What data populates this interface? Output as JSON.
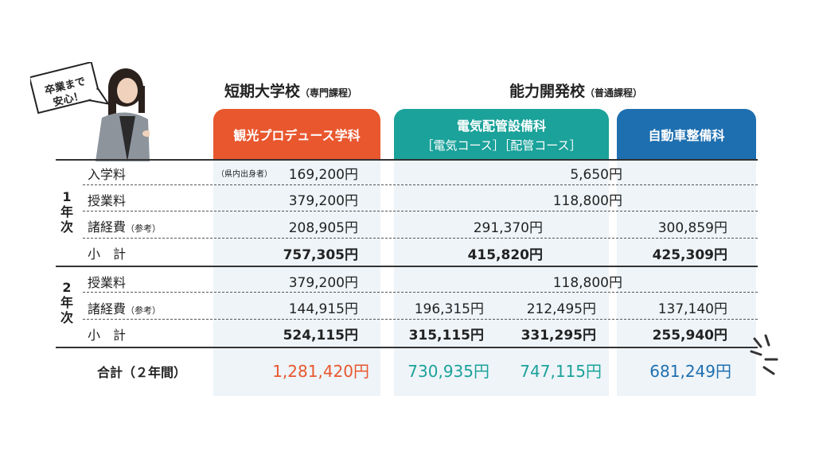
{
  "badge": "卒業まで\n安心！",
  "groups": {
    "tanki": {
      "title": "短期大学校",
      "sub": "（専門課程）"
    },
    "noryoku": {
      "title": "能力開発校",
      "sub": "（普通課程）"
    }
  },
  "columns": {
    "kanko": {
      "name": "観光プロデュース学科",
      "color": "#e8572e"
    },
    "denki": {
      "name": "電気配管設備科",
      "sub": "［電気コース］［配管コース］",
      "color": "#1ba29a"
    },
    "jidosha": {
      "name": "自動車整備科",
      "color": "#1e6fb0"
    }
  },
  "years": {
    "y1": "1\n年\n次",
    "y2": "2\n年\n次"
  },
  "rows": {
    "r1": {
      "label": "入学料",
      "note": "（県内出身者）",
      "kanko": "169,200円",
      "noryoku": "5,650円"
    },
    "r2": {
      "label": "授業料",
      "kanko": "379,200円",
      "noryoku": "118,800円"
    },
    "r3": {
      "label": "諸経費",
      "label_note": "（参考）",
      "kanko": "208,905円",
      "denki": "291,370円",
      "jidosha": "300,859円"
    },
    "r4": {
      "label": "小　計",
      "kanko": "757,305円",
      "denki": "415,820円",
      "jidosha": "425,309円"
    },
    "r5": {
      "label": "授業料",
      "kanko": "379,200円",
      "noryoku": "118,800円"
    },
    "r6": {
      "label": "諸経費",
      "label_note": "（参考）",
      "kanko": "144,915円",
      "denki_e": "196,315円",
      "denki_h": "212,495円",
      "jidosha": "137,140円"
    },
    "r7": {
      "label": "小　計",
      "kanko": "524,115円",
      "denki_e": "315,115円",
      "denki_h": "331,295円",
      "jidosha": "255,940円"
    }
  },
  "total": {
    "label": "合計（２年間）",
    "kanko": "1,281,420円",
    "denki_e": "730,935円",
    "denki_h": "747,115円",
    "jidosha": "681,249円"
  }
}
